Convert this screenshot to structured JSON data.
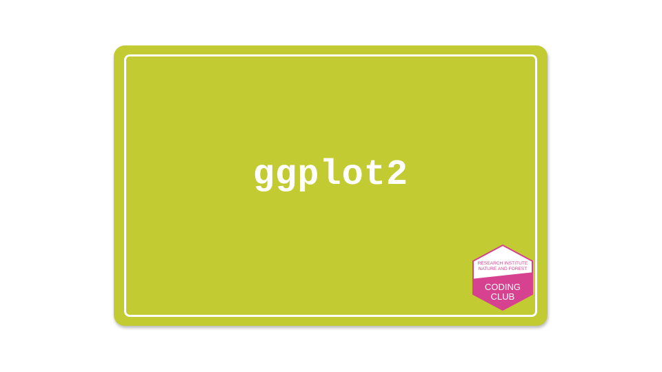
{
  "slide": {
    "title": "ggplot2",
    "colors": {
      "background": "#c2cb32",
      "frame": "#ffffff",
      "title": "#ffffff",
      "badge_accent": "#d6428f",
      "badge_text": "#d6428f"
    }
  },
  "logo": {
    "name": "coding-club-hexagon-logo",
    "line1": "RESEARCH INSTITUTE",
    "line2": "NATURE AND FOREST",
    "line3": "CODING",
    "line4": "CLUB"
  }
}
